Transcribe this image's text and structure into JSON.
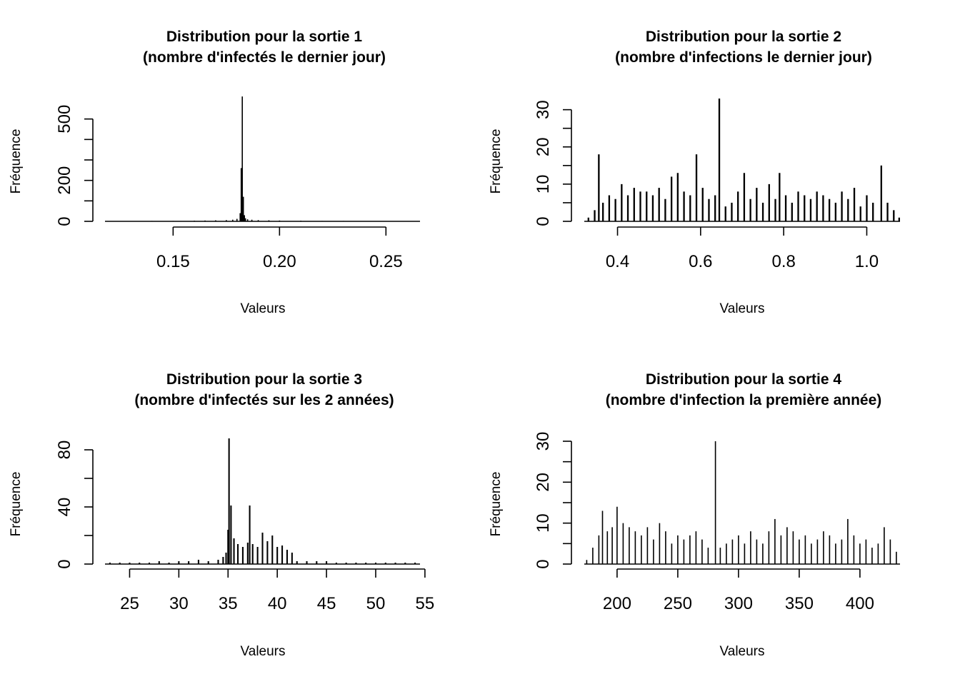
{
  "colors": {
    "background": "#ffffff",
    "ink": "#000000"
  },
  "chart_data": [
    {
      "type": "bar",
      "title": [
        "Distribution pour la sortie 1",
        "(nombre d'infectés le dernier jour)"
      ],
      "xlabel": "Valeurs",
      "ylabel": "Fréquence",
      "xlim": [
        0.118,
        0.266
      ],
      "ylim": [
        0,
        600
      ],
      "xticks": [
        0.15,
        0.2,
        0.25
      ],
      "xtick_labels": [
        "0.15",
        "0.20",
        "0.25"
      ],
      "yticks": [
        0,
        200,
        500
      ],
      "yticks_minor": [
        100,
        300,
        400
      ],
      "ytick_labels": [
        "0",
        "200",
        "500"
      ],
      "x": [
        0.12,
        0.13,
        0.14,
        0.15,
        0.16,
        0.165,
        0.17,
        0.175,
        0.178,
        0.18,
        0.1815,
        0.182,
        0.1825,
        0.183,
        0.1835,
        0.184,
        0.185,
        0.187,
        0.19,
        0.195,
        0.2,
        0.21,
        0.22,
        0.23,
        0.24,
        0.25,
        0.26
      ],
      "values": [
        1,
        1,
        2,
        2,
        3,
        4,
        5,
        6,
        8,
        12,
        40,
        260,
        610,
        120,
        30,
        15,
        10,
        8,
        6,
        5,
        4,
        3,
        2,
        2,
        1,
        1,
        1
      ],
      "bar_width": 0.0005
    },
    {
      "type": "bar",
      "title": [
        "Distribution pour la sortie 2",
        "(nombre d'infections le dernier jour)"
      ],
      "xlabel": "Valeurs",
      "ylabel": "Fréquence",
      "xlim": [
        0.32,
        1.08
      ],
      "ylim": [
        0,
        33
      ],
      "xticks": [
        0.4,
        0.6,
        0.8,
        1.0
      ],
      "xtick_labels": [
        "0.4",
        "0.6",
        "0.8",
        "1.0"
      ],
      "yticks": [
        0,
        10,
        20,
        30
      ],
      "yticks_minor": [
        5,
        15,
        25
      ],
      "ytick_labels": [
        "0",
        "10",
        "20",
        "30"
      ],
      "x": [
        0.33,
        0.345,
        0.355,
        0.365,
        0.38,
        0.395,
        0.41,
        0.425,
        0.44,
        0.455,
        0.47,
        0.485,
        0.5,
        0.515,
        0.53,
        0.545,
        0.56,
        0.575,
        0.59,
        0.605,
        0.62,
        0.635,
        0.645,
        0.66,
        0.675,
        0.69,
        0.705,
        0.72,
        0.735,
        0.75,
        0.765,
        0.78,
        0.79,
        0.805,
        0.82,
        0.835,
        0.85,
        0.865,
        0.88,
        0.895,
        0.91,
        0.925,
        0.94,
        0.955,
        0.97,
        0.985,
        1.0,
        1.015,
        1.035,
        1.05,
        1.065,
        1.078
      ],
      "values": [
        1,
        3,
        18,
        5,
        7,
        6,
        10,
        7,
        9,
        8,
        8,
        7,
        9,
        6,
        12,
        13,
        8,
        7,
        18,
        9,
        6,
        7,
        33,
        4,
        5,
        8,
        13,
        6,
        9,
        5,
        10,
        6,
        13,
        7,
        5,
        8,
        7,
        6,
        8,
        7,
        6,
        5,
        8,
        6,
        9,
        4,
        7,
        5,
        15,
        5,
        3,
        1
      ],
      "bar_width": 0.004
    },
    {
      "type": "bar",
      "title": [
        "Distribution pour la sortie 3",
        "(nombre d'infectés sur les 2 années)"
      ],
      "xlabel": "Valeurs",
      "ylabel": "Fréquence",
      "xlim": [
        22.5,
        54.5
      ],
      "ylim": [
        0,
        86
      ],
      "xticks": [
        25,
        30,
        35,
        40,
        45,
        50,
        55
      ],
      "xtick_labels": [
        "25",
        "30",
        "35",
        "40",
        "45",
        "50",
        "55"
      ],
      "yticks": [
        0,
        40,
        80
      ],
      "yticks_minor": [
        20,
        60
      ],
      "ytick_labels": [
        "0",
        "40",
        "80"
      ],
      "x": [
        23,
        24,
        25,
        26,
        27,
        28,
        29,
        30,
        31,
        32,
        33,
        34,
        34.5,
        34.8,
        35,
        35.1,
        35.3,
        35.6,
        36,
        36.5,
        37,
        37.2,
        37.5,
        38,
        38.5,
        39,
        39.5,
        40,
        40.5,
        41,
        41.5,
        42,
        43,
        44,
        45,
        46,
        47,
        48,
        49,
        50,
        51,
        52,
        53,
        54
      ],
      "values": [
        1,
        1,
        1,
        1,
        1,
        2,
        1,
        2,
        2,
        3,
        2,
        3,
        5,
        8,
        24,
        88,
        41,
        18,
        14,
        12,
        15,
        41,
        14,
        12,
        22,
        16,
        20,
        12,
        13,
        10,
        8,
        2,
        2,
        2,
        2,
        1,
        1,
        1,
        1,
        1,
        1,
        1,
        1,
        1
      ],
      "bar_width": 0.15
    },
    {
      "type": "bar",
      "title": [
        "Distribution pour la sortie 4",
        "(nombre d'infection la première année)"
      ],
      "xlabel": "Valeurs",
      "ylabel": "Fréquence",
      "xlim": [
        173,
        433
      ],
      "ylim": [
        0,
        30
      ],
      "xticks": [
        200,
        250,
        300,
        350,
        400
      ],
      "xtick_labels": [
        "200",
        "250",
        "300",
        "350",
        "400"
      ],
      "yticks": [
        0,
        10,
        20,
        30
      ],
      "yticks_minor": [
        5,
        15,
        25
      ],
      "ytick_labels": [
        "0",
        "10",
        "20",
        "30"
      ],
      "x": [
        175,
        180,
        185,
        188,
        192,
        196,
        200,
        205,
        210,
        215,
        220,
        225,
        230,
        235,
        240,
        245,
        250,
        255,
        260,
        265,
        270,
        275,
        281,
        285,
        290,
        295,
        300,
        305,
        310,
        315,
        320,
        325,
        330,
        335,
        340,
        345,
        350,
        355,
        360,
        365,
        370,
        375,
        380,
        385,
        390,
        395,
        400,
        405,
        410,
        415,
        420,
        425,
        430
      ],
      "values": [
        1,
        4,
        7,
        13,
        8,
        9,
        14,
        10,
        9,
        8,
        7,
        9,
        6,
        10,
        8,
        5,
        7,
        6,
        7,
        8,
        6,
        4,
        30,
        4,
        5,
        6,
        7,
        5,
        8,
        6,
        5,
        8,
        11,
        7,
        9,
        8,
        6,
        7,
        5,
        6,
        8,
        7,
        5,
        6,
        11,
        7,
        5,
        6,
        4,
        5,
        9,
        6,
        3
      ],
      "bar_width": 0.8
    }
  ]
}
